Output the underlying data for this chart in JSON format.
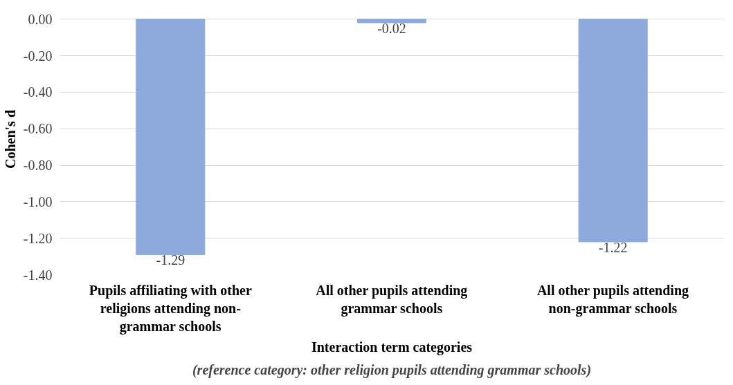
{
  "chart_data": {
    "type": "bar",
    "categories": [
      "Pupils affiliating with other religions attending non-grammar schools",
      "All other pupils attending grammar schools",
      "All other pupils attending non-grammar schools"
    ],
    "values": [
      -1.29,
      -0.02,
      -1.22
    ],
    "value_labels": [
      "-1.29",
      "-0.02",
      "-1.22"
    ],
    "color": "#8eaadc",
    "ylabel": "Cohen's d",
    "xlabel": "Interaction term categories",
    "annotations": [
      "(reference category: other religion pupils attending grammar schools)"
    ],
    "ylim": [
      -1.4,
      0
    ],
    "yticks": [
      {
        "value": 0,
        "label": "0.00"
      },
      {
        "value": -0.2,
        "label": "-0.20"
      },
      {
        "value": -0.4,
        "label": "-0.40"
      },
      {
        "value": -0.6,
        "label": "-0.60"
      },
      {
        "value": -0.8,
        "label": "-0.80"
      },
      {
        "value": -1.0,
        "label": "-1.00"
      },
      {
        "value": -1.2,
        "label": "-1.20"
      },
      {
        "value": -1.4,
        "label": "-1.40"
      }
    ],
    "grid": "y"
  }
}
